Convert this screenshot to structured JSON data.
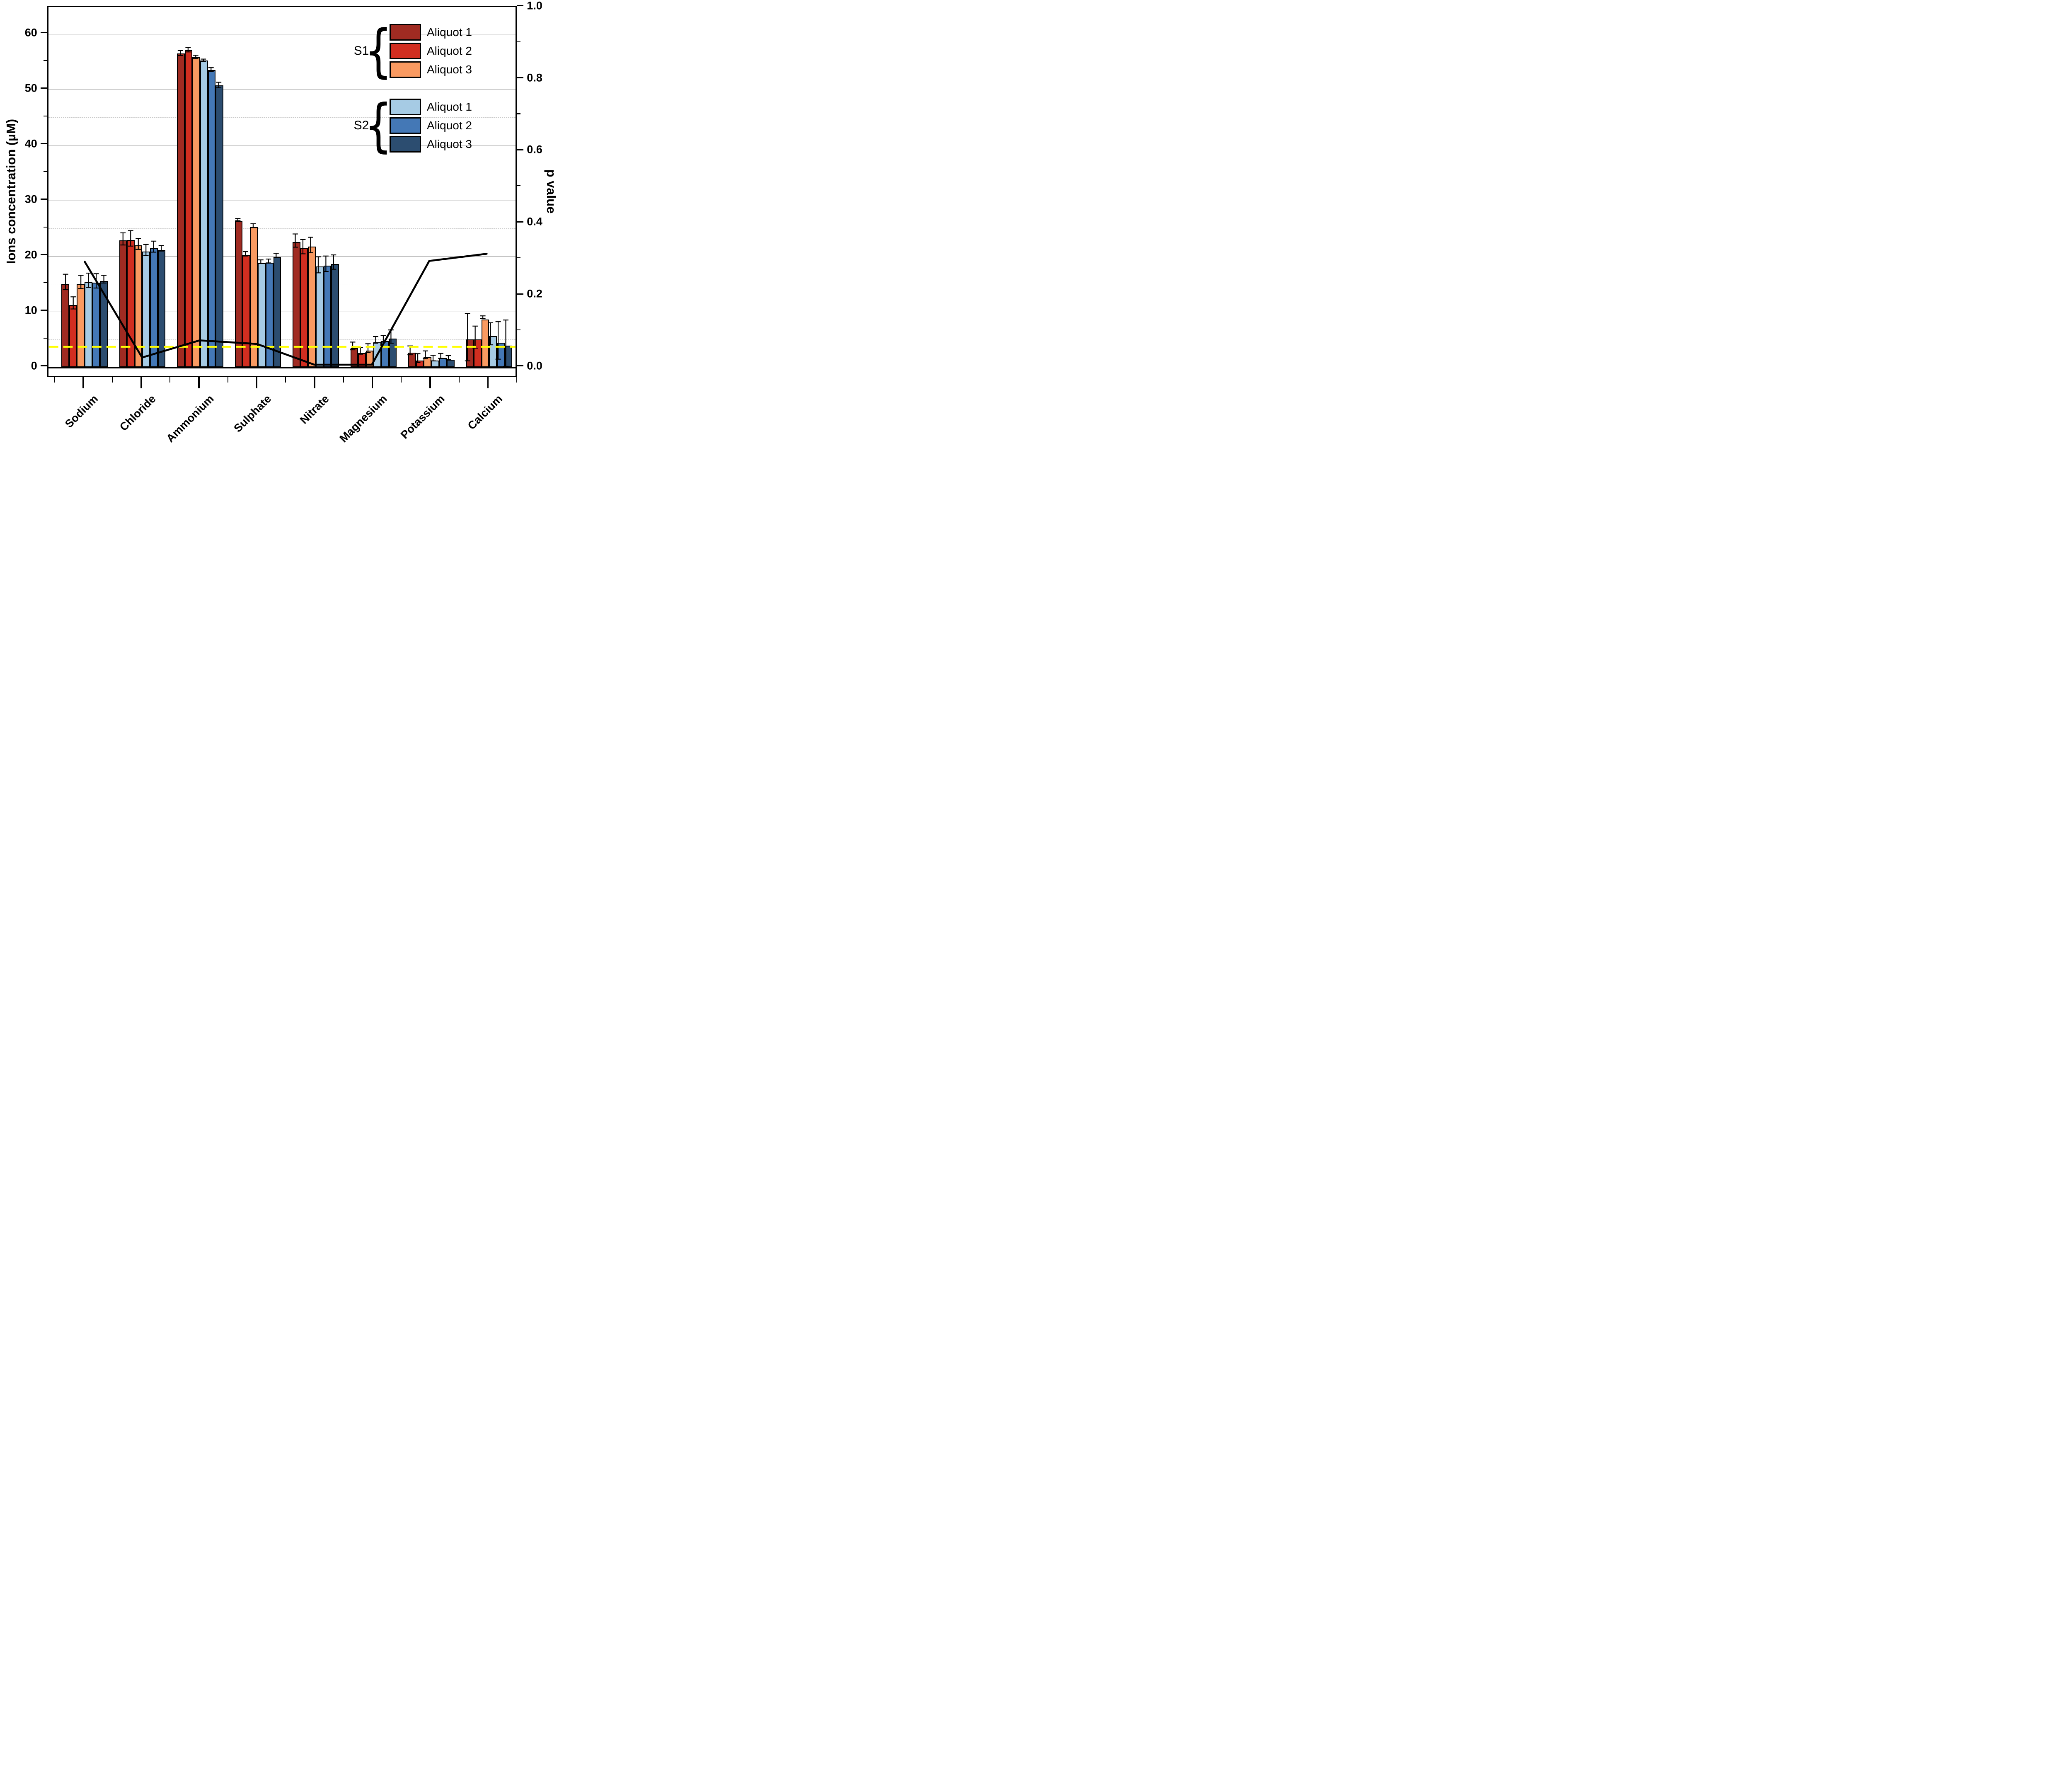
{
  "figure": {
    "background": "#ffffff"
  },
  "axes": {
    "left": {
      "title": "Ions concentration (µM)",
      "tick_labels": [
        "0",
        "10",
        "20",
        "30",
        "40",
        "50",
        "60"
      ],
      "major_ticks": [
        0,
        10,
        20,
        30,
        40,
        50,
        60
      ],
      "minor_ticks": [
        5,
        15,
        25,
        35,
        45,
        55
      ],
      "max_value": 64.8
    },
    "right": {
      "title": "p value",
      "tick_labels": [
        "0.0",
        "0.2",
        "0.4",
        "0.6",
        "0.8",
        "1.0"
      ],
      "major_ticks": [
        0,
        0.2,
        0.4,
        0.6,
        0.8,
        1.0
      ],
      "minor_ticks": [
        0.1,
        0.3,
        0.5,
        0.7,
        0.9
      ],
      "max_value": 1.0
    },
    "bottom": {
      "categories": [
        "Sodium",
        "Chloride",
        "Ammonium",
        "Sulphate",
        "Nitrate",
        "Magnesium",
        "Potassium",
        "Calcium"
      ]
    }
  },
  "chart_data": {
    "type": "bar",
    "title": "",
    "categories": [
      "Sodium",
      "Chloride",
      "Ammonium",
      "Sulphate",
      "Nitrate",
      "Magnesium",
      "Potassium",
      "Calcium"
    ],
    "ylabel_left": "Ions concentration (µM)",
    "ylabel_right": "p value",
    "ylim_left": [
      0,
      64.8
    ],
    "ylim_right": [
      0,
      1.0
    ],
    "grid": {
      "major": "solid-gray",
      "minor": "dashed-light-gray"
    },
    "legend_position": "top-right-inside",
    "series": [
      {
        "group": "S1",
        "name": "Aliquot 1",
        "color": "#A02B22",
        "values": [
          15.0,
          22.8,
          56.5,
          26.3,
          22.5,
          3.4,
          2.6,
          5.0
        ],
        "errors": [
          1.4,
          1.1,
          0.45,
          0.2,
          1.2,
          0.7,
          0.8,
          4.3
        ]
      },
      {
        "group": "S1",
        "name": "Aliquot 2",
        "color": "#D12E20",
        "values": [
          11.2,
          22.9,
          57.1,
          20.1,
          21.4,
          2.5,
          1.2,
          5.0
        ],
        "errors": [
          1.1,
          1.4,
          0.4,
          0.4,
          1.3,
          0.6,
          0.8,
          2.0
        ]
      },
      {
        "group": "S1",
        "name": "Aliquot 3",
        "color": "#F99A61",
        "values": [
          15.0,
          21.9,
          55.8,
          25.2,
          21.7,
          3.0,
          1.8,
          8.6
        ],
        "errors": [
          1.2,
          1.0,
          0.3,
          0.35,
          1.4,
          0.8,
          0.7,
          0.25
        ]
      },
      {
        "group": "S2",
        "name": "Aliquot 1",
        "color": "#A6CBE4",
        "values": [
          15.3,
          20.8,
          55.2,
          18.7,
          18.1,
          4.5,
          1.2,
          5.6
        ],
        "errors": [
          1.3,
          1.0,
          0.2,
          0.3,
          1.45,
          0.6,
          0.5,
          2.0
        ]
      },
      {
        "group": "S2",
        "name": "Aliquot 2",
        "color": "#4478B6",
        "values": [
          15.2,
          21.4,
          53.5,
          18.8,
          18.3,
          4.7,
          1.6,
          4.4
        ],
        "errors": [
          1.3,
          1.0,
          0.35,
          0.35,
          1.4,
          0.6,
          0.45,
          3.4
        ]
      },
      {
        "group": "S2",
        "name": "Aliquot 3",
        "color": "#2C4D70",
        "values": [
          15.5,
          21.1,
          50.7,
          19.8,
          18.6,
          5.1,
          1.3,
          3.9
        ],
        "errors": [
          0.7,
          0.5,
          0.5,
          0.4,
          1.3,
          1.2,
          0.35,
          4.2
        ]
      }
    ],
    "p_line": {
      "name": "p value",
      "color": "#000000",
      "values": [
        0.288,
        0.02,
        0.068,
        0.058,
        0.0,
        0.0,
        0.29,
        0.31
      ]
    },
    "significance_line": {
      "value": 0.05,
      "color": "#FFFF00",
      "style": "dashed"
    }
  },
  "legend": {
    "brace": "{",
    "groups": [
      {
        "label": "S1",
        "items": [
          {
            "label": "Aliquot 1",
            "color": "#A02B22"
          },
          {
            "label": "Aliquot 2",
            "color": "#D12E20"
          },
          {
            "label": "Aliquot 3",
            "color": "#F99A61"
          }
        ]
      },
      {
        "label": "S2",
        "items": [
          {
            "label": "Aliquot 1",
            "color": "#A6CBE4"
          },
          {
            "label": "Aliquot 2",
            "color": "#4478B6"
          },
          {
            "label": "Aliquot 3",
            "color": "#2C4D70"
          }
        ]
      }
    ]
  }
}
